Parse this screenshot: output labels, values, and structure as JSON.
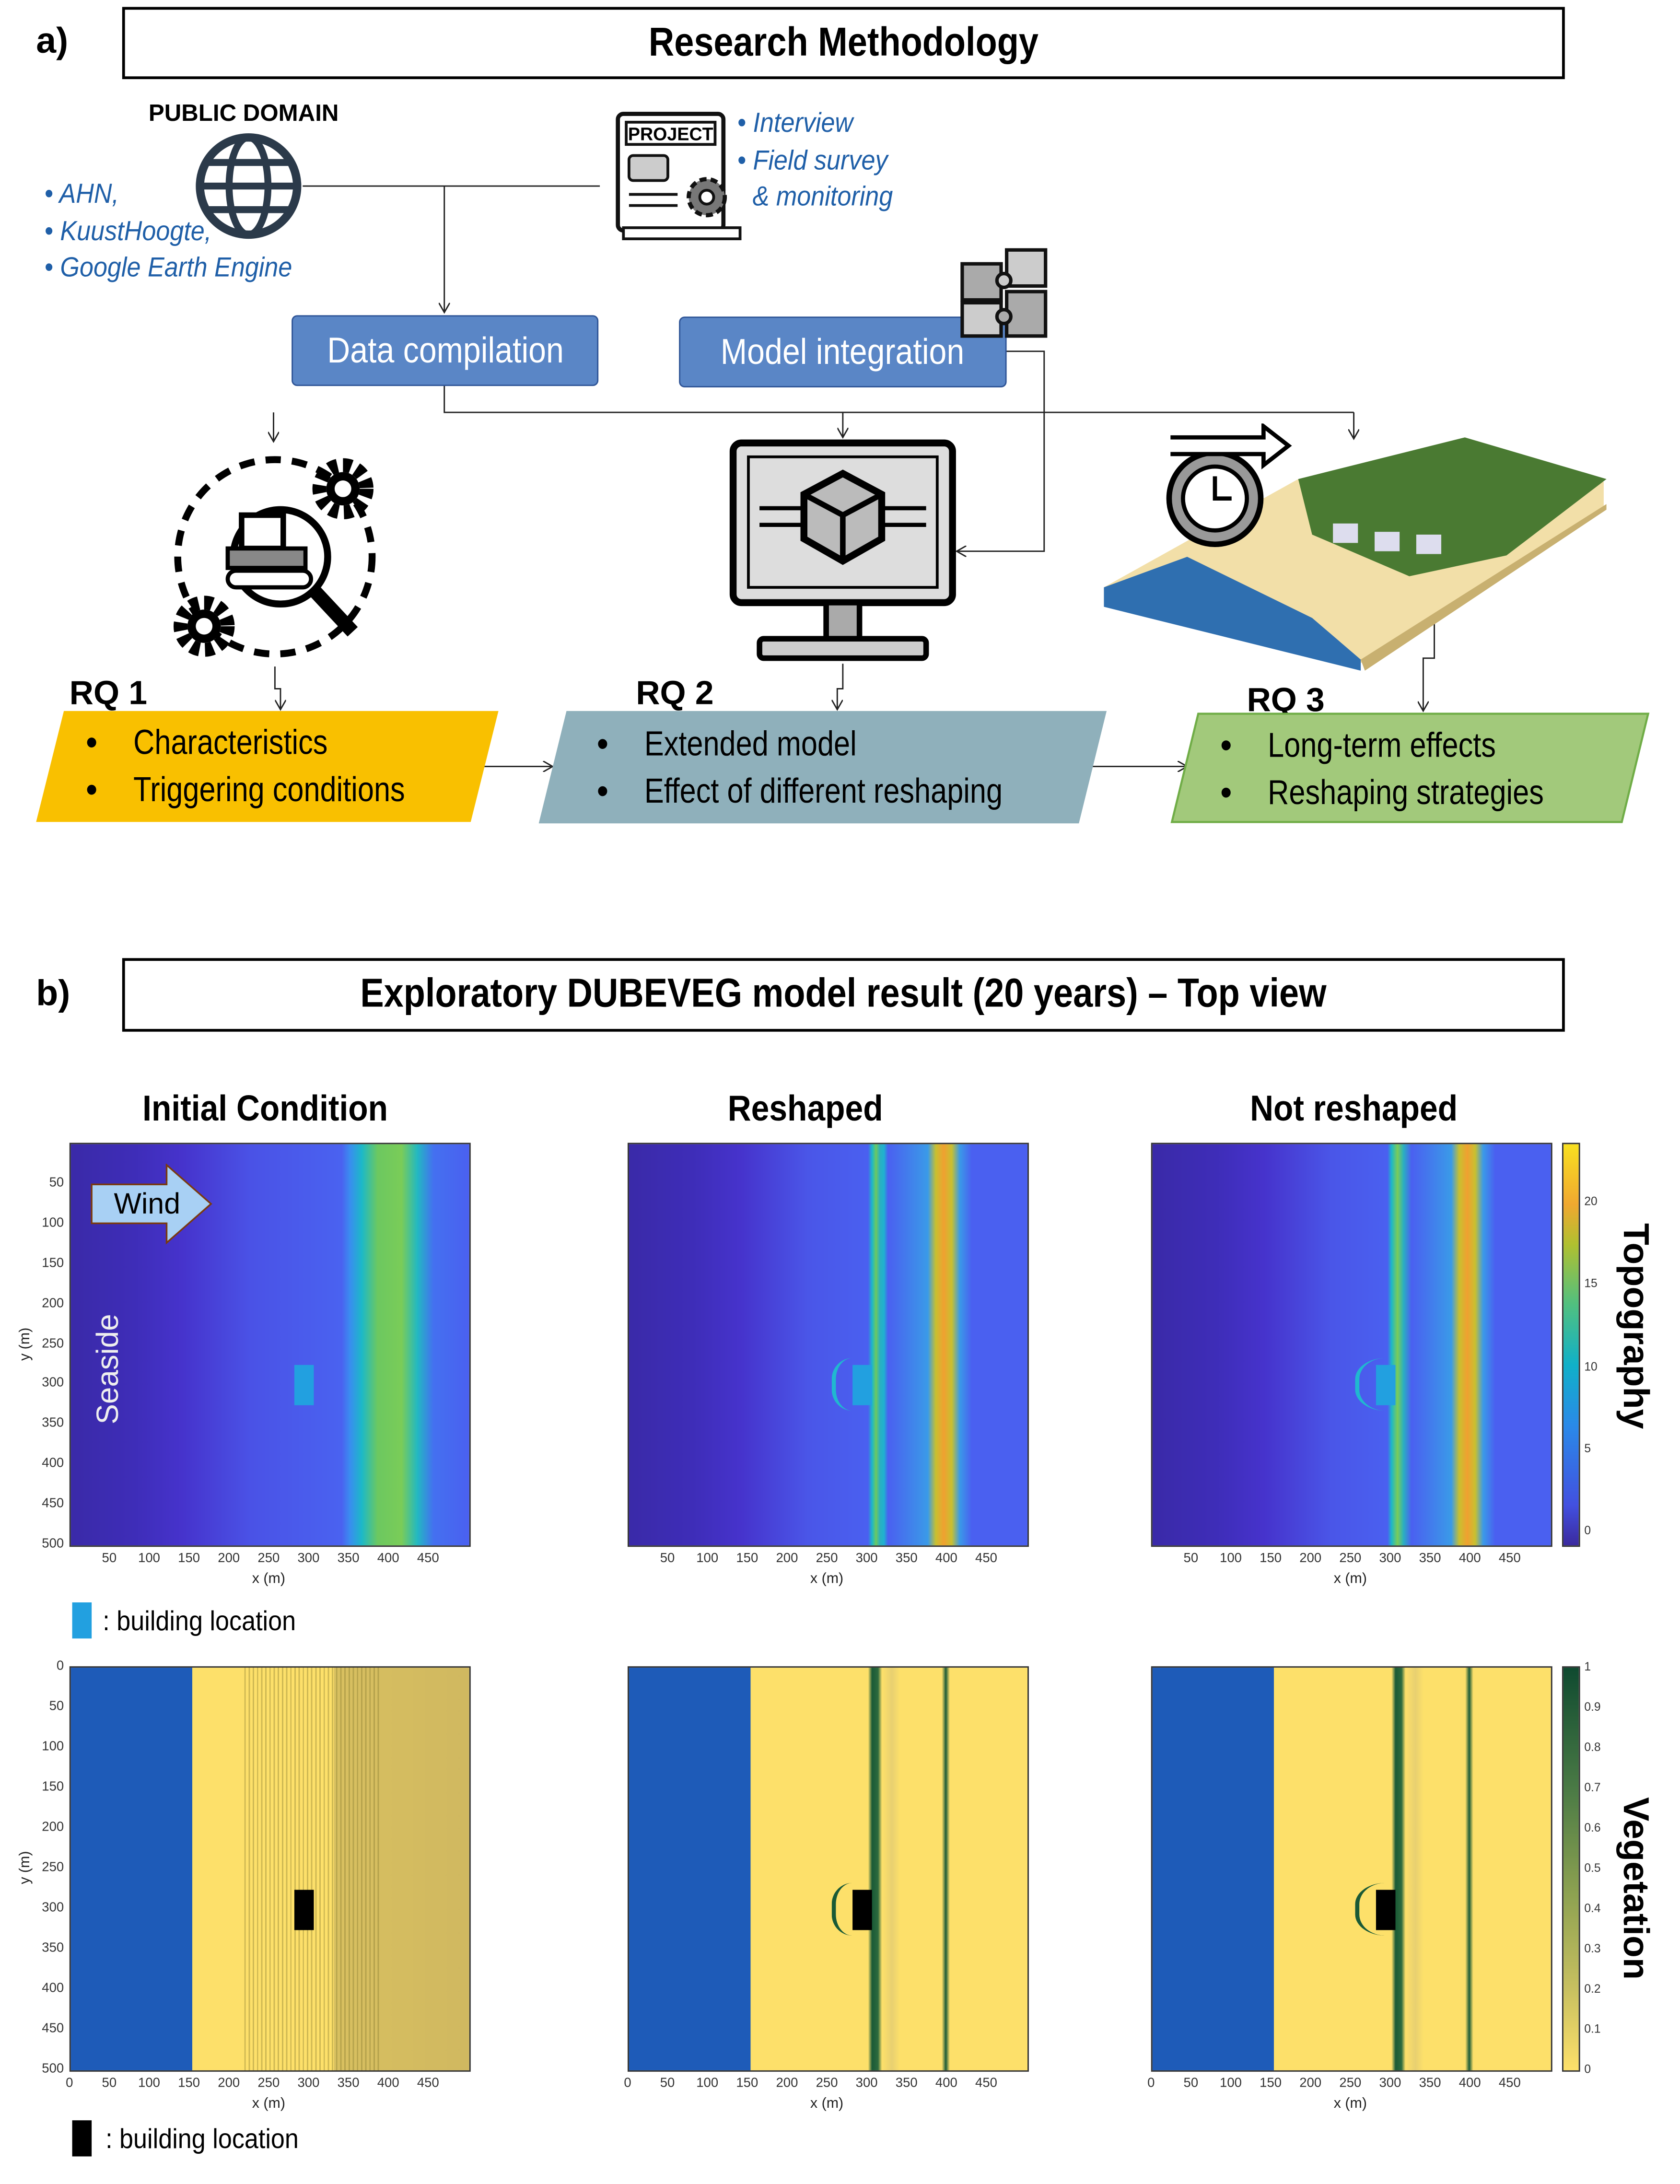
{
  "part_a": {
    "label": "a)",
    "title": "Research Methodology",
    "public_domain": {
      "heading": "PUBLIC DOMAIN",
      "icon": "globe-icon",
      "sources": [
        "• AHN,",
        "• KuustHoogte,",
        "• Google Earth Engine"
      ]
    },
    "project": {
      "icon_text": "PROJECT",
      "icon": "project-document-gear-icon",
      "sources": [
        "• Interview",
        "• Field survey",
        "& monitoring"
      ]
    },
    "data_compilation": "Data compilation",
    "model_integration": "Model integration",
    "puzzle_icon": "puzzle-icon",
    "rq": [
      {
        "label": "RQ 1",
        "icon": "bulldozer-search-gears-icon",
        "items": [
          "Characteristics",
          "Triggering conditions"
        ],
        "color": "#f9c000"
      },
      {
        "label": "RQ 2",
        "icon": "computer-model-cube-icon",
        "items": [
          "Extended model",
          "Effect of different reshaping"
        ],
        "color": "#8fb0bb"
      },
      {
        "label": "RQ 3",
        "icon": "clock-forward-coastal-scene-icon",
        "items": [
          "Long-term effects",
          "Reshaping strategies"
        ],
        "color": "#a2c97b"
      }
    ],
    "bullet": "•"
  },
  "part_b": {
    "label": "b)",
    "title": "Exploratory DUBEVEG model result (20 years) – Top view",
    "wind_label": "Wind",
    "seaside_label": "Seaside",
    "legend_topography": ": building location",
    "legend_vegetation": ": building location",
    "legend_colors": {
      "topography_building": "#22a0e0",
      "vegetation_building": "#000000"
    }
  },
  "chart_data": [
    {
      "type": "heatmap",
      "variable": "Topography",
      "panels": [
        "Initial Condition",
        "Reshaped",
        "Not reshaped"
      ],
      "xlabel": "x (m)",
      "ylabel": "y (m)",
      "xlim": [
        0,
        500
      ],
      "ylim": [
        0,
        500
      ],
      "xticks": [
        50,
        100,
        150,
        200,
        250,
        300,
        350,
        400,
        450
      ],
      "yticks": [
        50,
        100,
        150,
        200,
        250,
        300,
        350,
        400,
        450,
        500
      ],
      "colorbar": {
        "label": "Topography",
        "range": [
          -0.8,
          23.5
        ],
        "ticks": [
          0,
          5,
          10,
          15,
          20
        ],
        "colormap": "parula"
      },
      "building": {
        "x": [
          280,
          305
        ],
        "y": [
          275,
          325
        ]
      },
      "features": {
        "initial_dune_crest_x": 390,
        "reshaped_foredune_x": [
          300,
          400
        ],
        "not_reshaped_foredune_x": [
          300,
          400
        ]
      }
    },
    {
      "type": "heatmap",
      "variable": "Vegetation",
      "panels": [
        "Initial Condition",
        "Reshaped",
        "Not reshaped"
      ],
      "xlabel": "x (m)",
      "ylabel": "y (m)",
      "xlim": [
        0,
        500
      ],
      "ylim": [
        0,
        500
      ],
      "xticks": [
        0,
        50,
        100,
        150,
        200,
        250,
        300,
        350,
        400,
        450
      ],
      "yticks": [
        0,
        50,
        100,
        150,
        200,
        250,
        300,
        350,
        400,
        450,
        500
      ],
      "colorbar": {
        "label": "Vegetation",
        "range": [
          0,
          1
        ],
        "ticks": [
          0,
          0.1,
          0.2,
          0.3,
          0.4,
          0.5,
          0.6,
          0.7,
          0.8,
          0.9,
          1
        ],
        "colormap": "yellow-to-darkgreen"
      },
      "building": {
        "x": [
          280,
          305
        ],
        "y": [
          275,
          325
        ]
      },
      "features": {
        "sea_x": [
          0,
          150
        ],
        "initial_vegetated_x": [
          330,
          500
        ],
        "vegetation_lines_x": [
          300,
          400
        ]
      }
    }
  ]
}
